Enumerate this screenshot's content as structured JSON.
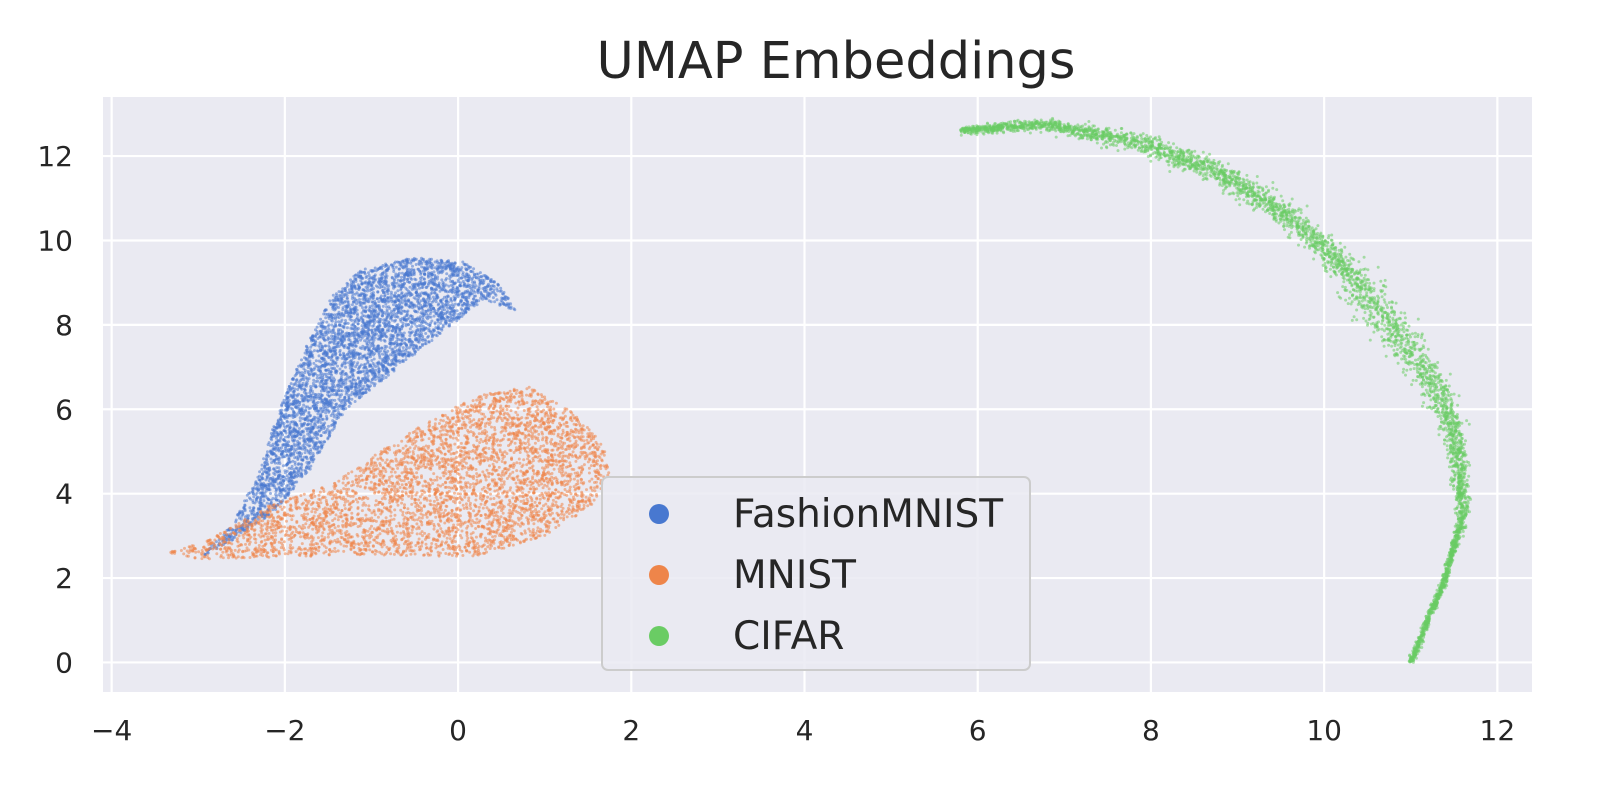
{
  "chart_data": {
    "type": "scatter",
    "title": "UMAP Embeddings",
    "xlabel": "",
    "ylabel": "",
    "xlim": [
      -4.1,
      12.4
    ],
    "ylim": [
      -0.7,
      13.4
    ],
    "xticks": [
      -4,
      -2,
      0,
      2,
      4,
      6,
      8,
      10,
      12
    ],
    "yticks": [
      0,
      2,
      4,
      6,
      8,
      10,
      12
    ],
    "xtick_labels": [
      "−4",
      "−2",
      "0",
      "2",
      "4",
      "6",
      "8",
      "10",
      "12"
    ],
    "ytick_labels": [
      "0",
      "2",
      "4",
      "6",
      "8",
      "10",
      "12"
    ],
    "grid": true,
    "legend_position": "lower-center",
    "background": "#eaeaf2",
    "series": [
      {
        "name": "FashionMNIST",
        "color": "#4878d0",
        "shape": [
          [
            -3.0,
            2.45
          ],
          [
            -2.6,
            3.3
          ],
          [
            -2.3,
            4.5
          ],
          [
            -2.1,
            5.8
          ],
          [
            -1.8,
            7.3
          ],
          [
            -1.45,
            8.7
          ],
          [
            -1.1,
            9.35
          ],
          [
            -0.5,
            9.6
          ],
          [
            0.05,
            9.5
          ],
          [
            0.45,
            9.0
          ],
          [
            0.7,
            8.3
          ],
          [
            0.3,
            8.6
          ],
          [
            -0.2,
            7.8
          ],
          [
            -0.8,
            6.8
          ],
          [
            -1.3,
            6.0
          ],
          [
            -1.7,
            4.6
          ],
          [
            -2.1,
            3.6
          ],
          [
            -2.6,
            2.9
          ]
        ],
        "density": 0.5
      },
      {
        "name": "MNIST",
        "color": "#ee854a",
        "shape": [
          [
            -3.35,
            2.6
          ],
          [
            -2.8,
            3.0
          ],
          [
            -2.2,
            3.7
          ],
          [
            -1.5,
            4.2
          ],
          [
            -0.9,
            5.0
          ],
          [
            -0.2,
            5.9
          ],
          [
            0.3,
            6.35
          ],
          [
            0.8,
            6.55
          ],
          [
            1.35,
            5.9
          ],
          [
            1.7,
            5.1
          ],
          [
            1.75,
            4.4
          ],
          [
            1.5,
            3.6
          ],
          [
            1.0,
            3.0
          ],
          [
            0.2,
            2.5
          ],
          [
            -1.0,
            2.55
          ],
          [
            -2.0,
            2.5
          ],
          [
            -3.0,
            2.45
          ]
        ],
        "density": 0.6
      },
      {
        "name": "CIFAR",
        "color": "#6acc64",
        "arc": [
          [
            5.8,
            12.6
          ],
          [
            6.8,
            12.75
          ],
          [
            7.8,
            12.35
          ],
          [
            8.8,
            11.6
          ],
          [
            9.7,
            10.4
          ],
          [
            10.3,
            9.2
          ],
          [
            10.8,
            7.9
          ],
          [
            11.3,
            6.5
          ],
          [
            11.55,
            5.0
          ],
          [
            11.6,
            3.5
          ],
          [
            11.4,
            2.0
          ],
          [
            11.0,
            0.0
          ]
        ],
        "density": 0.3
      }
    ]
  }
}
